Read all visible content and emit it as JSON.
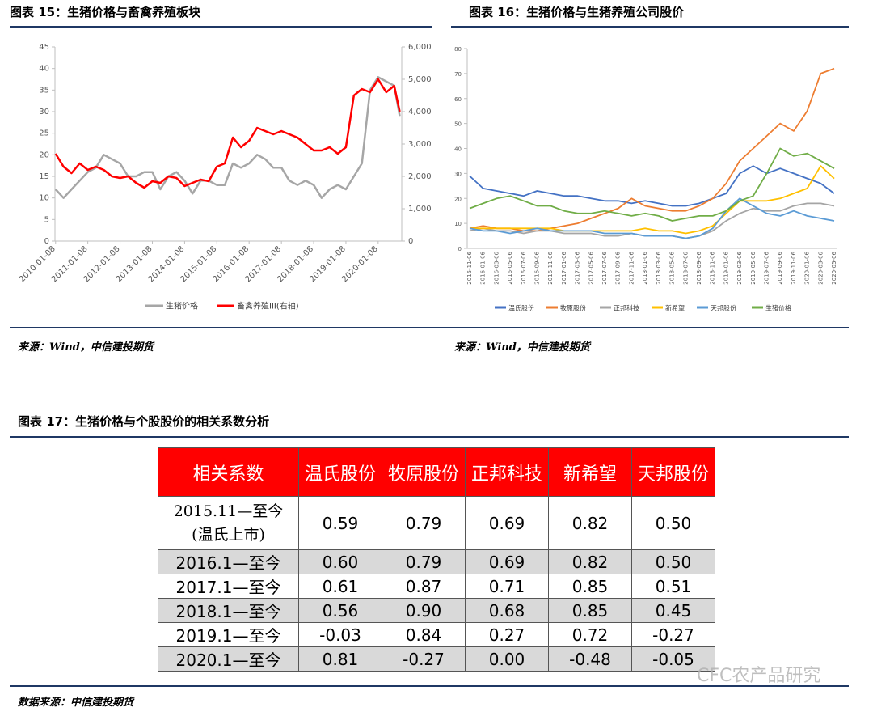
{
  "chart_data": [
    {
      "type": "line",
      "title": "图表 15：生猪价格与畜禽养殖板块",
      "source": "来源：Wind，中信建投期货",
      "x": [
        "2010-01-08",
        "2010-04-08",
        "2010-07-08",
        "2010-10-08",
        "2011-01-08",
        "2011-04-08",
        "2011-07-08",
        "2011-10-08",
        "2012-01-08",
        "2012-04-08",
        "2012-07-08",
        "2012-10-08",
        "2013-01-08",
        "2013-04-08",
        "2013-07-08",
        "2013-10-08",
        "2014-01-08",
        "2014-04-08",
        "2014-07-08",
        "2014-10-08",
        "2015-01-08",
        "2015-04-08",
        "2015-07-08",
        "2015-10-08",
        "2016-01-08",
        "2016-04-08",
        "2016-07-08",
        "2016-10-08",
        "2017-01-08",
        "2017-04-08",
        "2017-07-08",
        "2017-10-08",
        "2018-01-08",
        "2018-04-08",
        "2018-07-08",
        "2018-10-08",
        "2019-01-08",
        "2019-04-08",
        "2019-07-08",
        "2019-10-08",
        "2020-01-08",
        "2020-04-08",
        "2020-07-08",
        "2020-09-08"
      ],
      "xlim": [
        "2010-01-01",
        "2020-10-01"
      ],
      "xticks": [
        "2010-01-08",
        "2011-01-08",
        "2012-01-08",
        "2013-01-08",
        "2014-01-08",
        "2015-01-08",
        "2016-01-08",
        "2017-01-08",
        "2018-01-08",
        "2019-01-08",
        "2020-01-08"
      ],
      "ylim": [
        0,
        45
      ],
      "yticks": [
        0,
        5,
        10,
        15,
        20,
        25,
        30,
        35,
        40,
        45
      ],
      "y2lim": [
        0,
        6000
      ],
      "y2ticks": [
        0,
        {
          "value": 1000,
          "label": "1,000"
        },
        {
          "value": 2000,
          "label": "2,000"
        },
        {
          "value": 3000,
          "label": "3,000"
        },
        {
          "value": 4000,
          "label": "4,000"
        },
        {
          "value": 5000,
          "label": "5,000"
        },
        {
          "value": 6000,
          "label": "6,000"
        }
      ],
      "grid": false,
      "legend": "bottom",
      "series": [
        {
          "name": "生猪价格",
          "color": "#a6a6a6",
          "values": [
            12,
            10,
            12,
            14,
            16,
            17,
            20,
            19,
            18,
            15,
            15,
            16,
            16,
            12,
            15,
            16,
            14,
            11,
            14,
            14,
            13,
            13,
            18,
            17,
            18,
            20,
            19,
            17,
            17,
            14,
            13,
            14,
            13,
            10,
            12,
            13,
            12,
            15,
            18,
            35,
            38,
            37,
            36,
            29
          ]
        },
        {
          "name": "畜禽养殖III(右轴)",
          "color": "#ff0000",
          "axis": "y2",
          "values": [
            2700,
            2300,
            2100,
            2400,
            2200,
            2300,
            2200,
            2000,
            1950,
            2000,
            1800,
            1650,
            1850,
            1800,
            2000,
            1950,
            1700,
            1800,
            1900,
            1850,
            2300,
            2400,
            3200,
            2900,
            3100,
            3500,
            3400,
            3300,
            3400,
            3300,
            3200,
            3000,
            2800,
            2800,
            2900,
            2700,
            2900,
            4500,
            4700,
            4600,
            5000,
            4600,
            4800,
            4000
          ]
        }
      ]
    },
    {
      "type": "line",
      "title": "图表 16：生猪价格与生猪养殖公司股价",
      "source": "来源：Wind，中信建投期货",
      "categories": [
        "2015-11-06",
        "2016-01-06",
        "2016-03-06",
        "2016-05-06",
        "2016-07-06",
        "2016-09-06",
        "2016-11-06",
        "2017-01-06",
        "2017-03-06",
        "2017-05-06",
        "2017-07-06",
        "2017-09-06",
        "2017-11-06",
        "2018-01-06",
        "2018-03-06",
        "2018-05-06",
        "2018-07-06",
        "2018-09-06",
        "2018-11-06",
        "2019-01-06",
        "2019-03-06",
        "2019-05-06",
        "2019-07-06",
        "2019-09-06",
        "2019-11-06",
        "2020-01-06",
        "2020-03-06",
        "2020-05-06"
      ],
      "ylim": [
        0,
        80
      ],
      "yticks": [
        0,
        10,
        20,
        30,
        40,
        50,
        60,
        70,
        80
      ],
      "grid": false,
      "legend": "bottom",
      "series": [
        {
          "name": "温氏股份",
          "color": "#4472c4",
          "values": [
            29,
            24,
            23,
            22,
            21,
            23,
            22,
            21,
            21,
            20,
            19,
            19,
            18,
            19,
            18,
            17,
            17,
            18,
            20,
            22,
            30,
            33,
            30,
            32,
            30,
            28,
            26,
            22
          ]
        },
        {
          "name": "牧原股份",
          "color": "#ed7d31",
          "values": [
            8,
            9,
            8,
            8,
            7,
            7,
            8,
            9,
            10,
            12,
            14,
            16,
            20,
            17,
            16,
            15,
            15,
            17,
            20,
            26,
            35,
            40,
            45,
            50,
            47,
            55,
            70,
            72
          ]
        },
        {
          "name": "正邦科技",
          "color": "#a5a5a5",
          "values": [
            7,
            8,
            7,
            7,
            6,
            7,
            7,
            6,
            6,
            6,
            5,
            5,
            6,
            5,
            5,
            5,
            4,
            5,
            7,
            11,
            14,
            16,
            15,
            15,
            17,
            18,
            18,
            17
          ]
        },
        {
          "name": "新希望",
          "color": "#ffc000",
          "values": [
            8,
            8,
            8,
            8,
            8,
            8,
            8,
            7,
            7,
            7,
            7,
            7,
            7,
            8,
            7,
            7,
            6,
            7,
            9,
            14,
            19,
            19,
            19,
            20,
            22,
            24,
            33,
            28
          ]
        },
        {
          "name": "天邦股份",
          "color": "#5b9bd5",
          "values": [
            8,
            7,
            7,
            6,
            7,
            8,
            7,
            7,
            7,
            7,
            6,
            6,
            6,
            5,
            5,
            5,
            4,
            5,
            8,
            15,
            20,
            17,
            14,
            13,
            15,
            13,
            12,
            11
          ]
        },
        {
          "name": "生猪价格",
          "color": "#70ad47",
          "values": [
            16,
            18,
            20,
            21,
            19,
            17,
            17,
            15,
            14,
            14,
            15,
            14,
            13,
            14,
            13,
            11,
            12,
            13,
            13,
            15,
            19,
            21,
            30,
            40,
            37,
            38,
            35,
            32
          ]
        }
      ]
    }
  ],
  "table": {
    "title": "图表 17：生猪价格与个股股价的相关系数分析",
    "header": [
      "相关系数",
      "温氏股份",
      "牧原股份",
      "正邦科技",
      "新希望",
      "天邦股份"
    ],
    "rows": [
      {
        "label": "2015.11—至今",
        "note": "(温氏上市)",
        "cells": [
          "0.59",
          "0.79",
          "0.69",
          "0.82",
          "0.50"
        ]
      },
      {
        "label": "2016.1—至今",
        "cells": [
          "0.60",
          "0.79",
          "0.69",
          "0.82",
          "0.50"
        ]
      },
      {
        "label": "2017.1—至今",
        "cells": [
          "0.61",
          "0.87",
          "0.71",
          "0.85",
          "0.51"
        ]
      },
      {
        "label": "2018.1—至今",
        "cells": [
          "0.56",
          "0.90",
          "0.68",
          "0.85",
          "0.45"
        ]
      },
      {
        "label": "2019.1—至今",
        "cells": [
          "-0.03",
          "0.84",
          "0.27",
          "0.72",
          "-0.27"
        ]
      },
      {
        "label": "2020.1—至今",
        "cells": [
          "0.81",
          "-0.27",
          "0.00",
          "-0.48",
          "-0.05"
        ]
      }
    ],
    "source": "数据来源：中信建投期货"
  },
  "watermark": "CFC农产品研究"
}
